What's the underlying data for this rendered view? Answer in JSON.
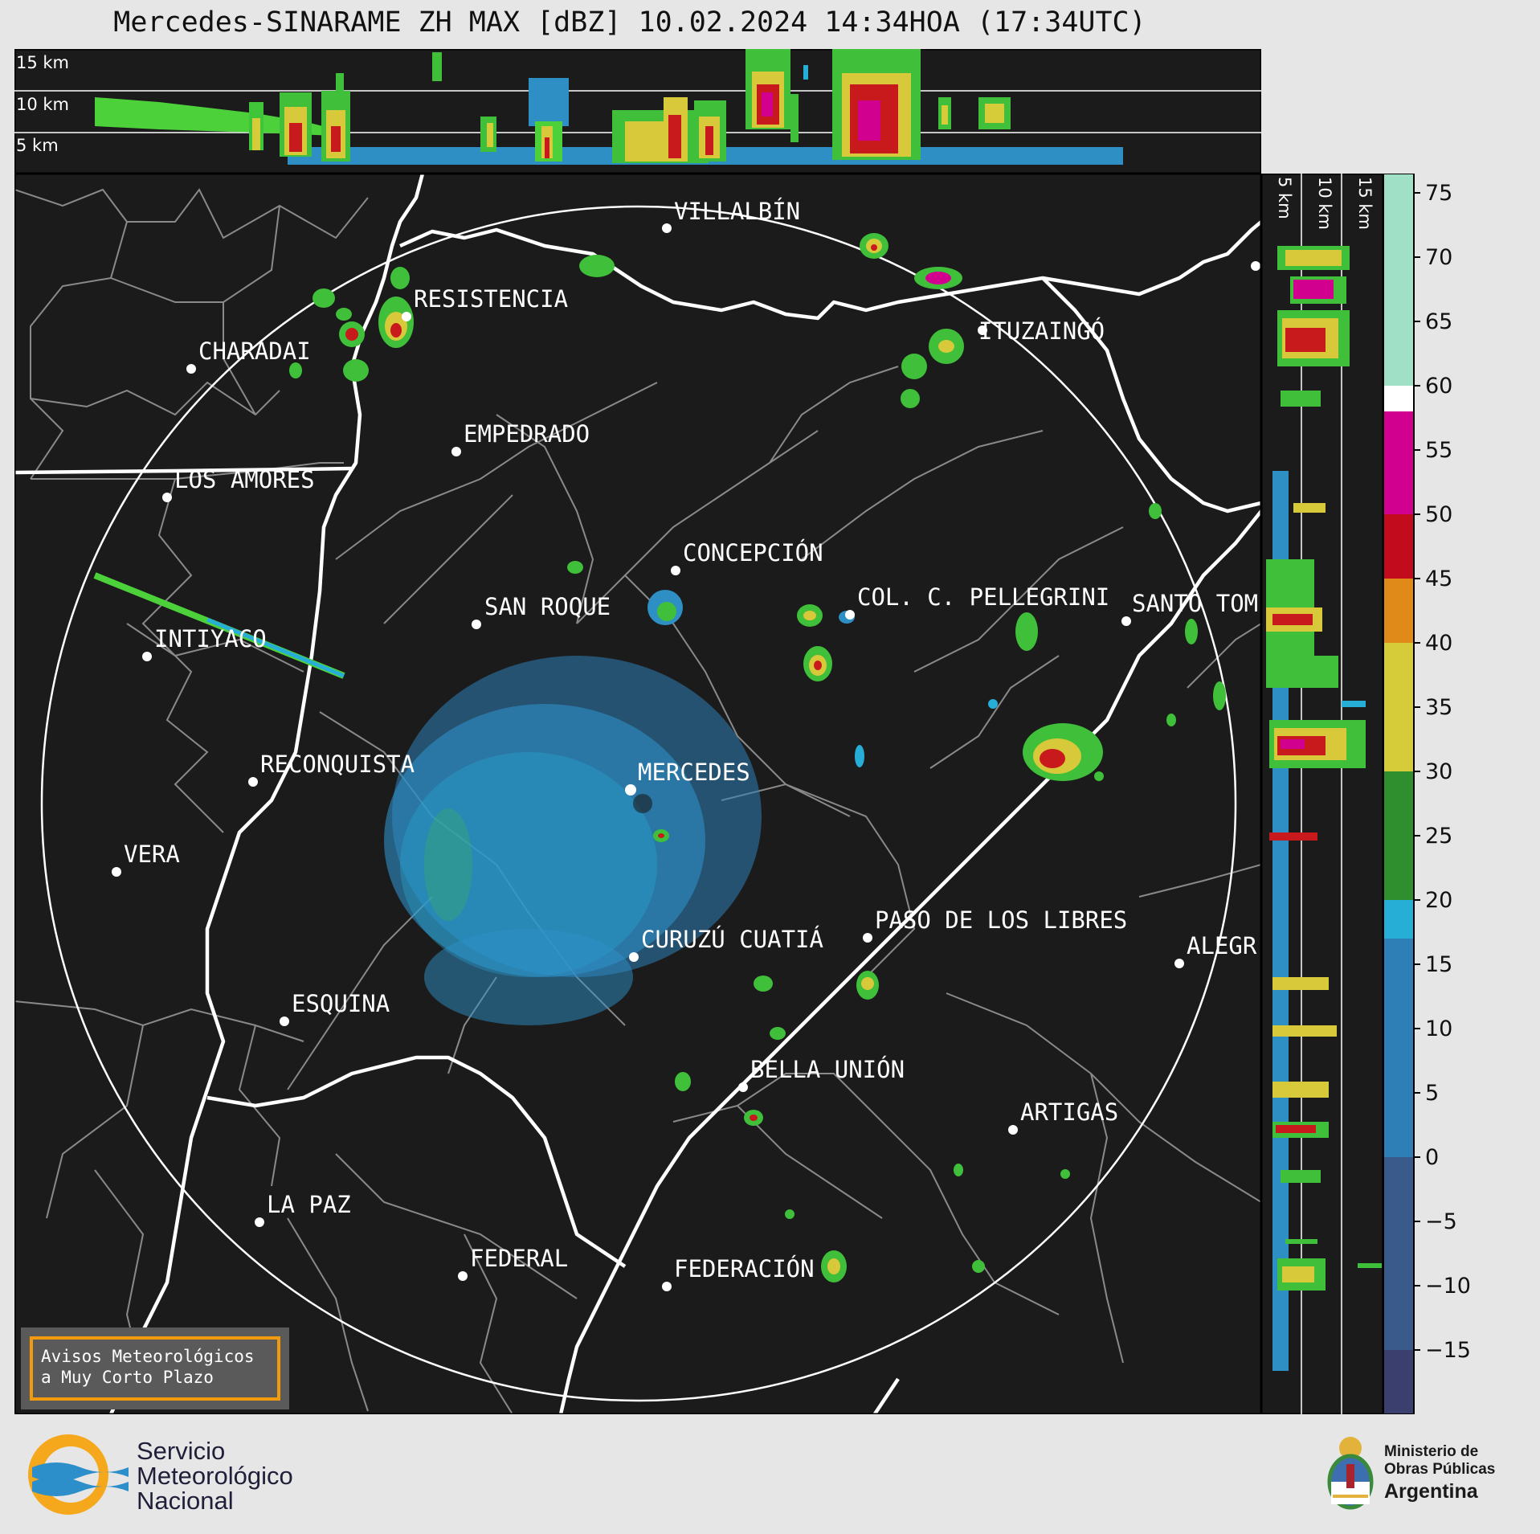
{
  "title": "Mercedes-SINARAME ZH MAX [dBZ] 10.02.2024 14:34HOA (17:34UTC)",
  "top_panel": {
    "height_labels": [
      "15 km",
      "10 km",
      "5 km"
    ]
  },
  "right_panel": {
    "height_labels": [
      "5 km",
      "10 km",
      "15 km"
    ]
  },
  "colorbar": {
    "ticks": [
      75,
      70,
      65,
      60,
      55,
      50,
      45,
      40,
      35,
      30,
      25,
      20,
      15,
      10,
      5,
      0,
      -5,
      -10,
      -15
    ],
    "tick_labels": [
      "75",
      "70",
      "65",
      "60",
      "55",
      "50",
      "45",
      "40",
      "35",
      "30",
      "25",
      "20",
      "15",
      "10",
      "5",
      "0",
      "−5",
      "−10",
      "−15"
    ],
    "range": [
      -20,
      76.5
    ],
    "colors": {
      "lt_minus_20": "#3a3f6e",
      "range_minus_20_0": "#3a5a8c",
      "range_0_17": "#2e7fb6",
      "range_17_20": "#27aed6",
      "range_20_30": "#2f8f2f",
      "range_30_40": "#d6cc3a",
      "range_40_45": "#e08a1a",
      "range_45_50": "#c20b1c",
      "range_50_58": "#d2008f",
      "range_58_60": "#ffffff",
      "range_60_76": "#9fe0c6"
    }
  },
  "map": {
    "radar_site": "MERCEDES",
    "cities": [
      "VILLALBÍN",
      "RESISTENCIA",
      "CHARADAI",
      "ITUZAINGÓ",
      "EMPEDRADO",
      "LOS AMORES",
      "CONCEPCIÓN",
      "COL. C. PELLEGRINI",
      "SANTO TOM",
      "SAN ROQUE",
      "INTIYACO",
      "MERCEDES",
      "RECONQUISTA",
      "VERA",
      "CURUZÚ CUATIÁ",
      "PASO DE LOS LIBRES",
      "ALEGR",
      "ESQUINA",
      "BELLA UNIÓN",
      "ARTIGAS",
      "LA PAZ",
      "FEDERAL",
      "FEDERACIÓN"
    ]
  },
  "aviso": {
    "line1": "Avisos Meteorológicos",
    "line2": "a Muy Corto Plazo"
  },
  "logos": {
    "smn": {
      "line1": "Servicio",
      "line2": "Meteorológico",
      "line3": "Nacional"
    },
    "ministerio": {
      "line1": "Ministerio de",
      "line2": "Obras Públicas",
      "line3": "Argentina"
    }
  }
}
